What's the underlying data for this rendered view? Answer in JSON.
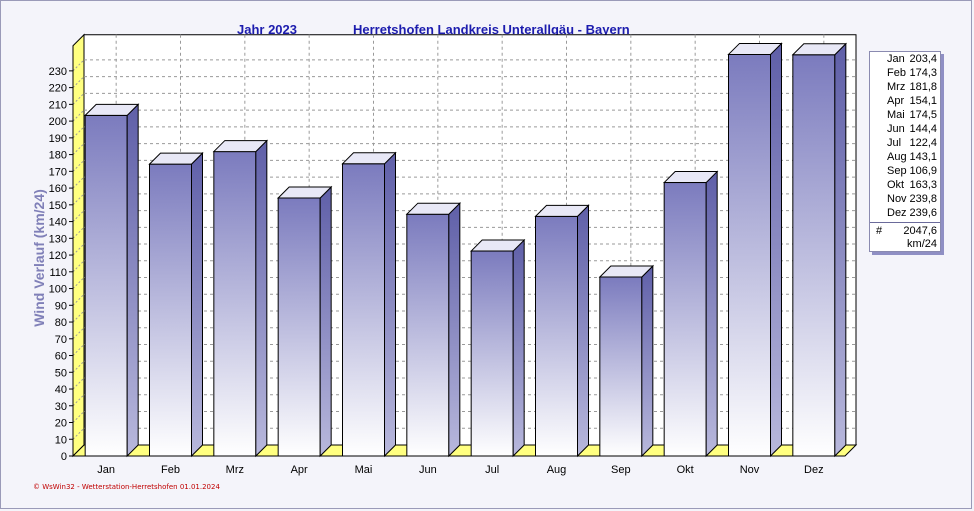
{
  "header": {
    "year_label": "Jahr  2023",
    "location": "Herretshofen Landkreis Unterallgäu - Bayern"
  },
  "chart_data": {
    "type": "bar",
    "style": "3d",
    "title": "Herretshofen Landkreis Unterallgäu - Bayern",
    "ylabel": "Wind Verlauf  (km/24)",
    "xlabel": "",
    "ylim": [
      0,
      245
    ],
    "yticks": [
      0,
      10,
      20,
      30,
      40,
      50,
      60,
      70,
      80,
      90,
      100,
      110,
      120,
      130,
      140,
      150,
      160,
      170,
      180,
      190,
      200,
      210,
      220,
      230
    ],
    "grid": true,
    "categories": [
      "Jan",
      "Feb",
      "Mrz",
      "Apr",
      "Mai",
      "Jun",
      "Jul",
      "Aug",
      "Sep",
      "Okt",
      "Nov",
      "Dez"
    ],
    "values": [
      203.4,
      174.3,
      181.8,
      154.1,
      174.5,
      144.4,
      122.4,
      143.1,
      106.9,
      163.3,
      239.8,
      239.6
    ],
    "colors": {
      "bar_top": "#7f7fc0",
      "bar_bottom": "#ffffff",
      "floor": "#ffff80",
      "axis_label": "#8080b8"
    }
  },
  "legend": {
    "rows": [
      {
        "month": "Jan",
        "value": "203,4"
      },
      {
        "month": "Feb",
        "value": "174,3"
      },
      {
        "month": "Mrz",
        "value": "181,8"
      },
      {
        "month": "Apr",
        "value": "154,1"
      },
      {
        "month": "Mai",
        "value": "174,5"
      },
      {
        "month": "Jun",
        "value": "144,4"
      },
      {
        "month": "Jul",
        "value": "122,4"
      },
      {
        "month": "Aug",
        "value": "143,1"
      },
      {
        "month": "Sep",
        "value": "106,9"
      },
      {
        "month": "Okt",
        "value": "163,3"
      },
      {
        "month": "Nov",
        "value": "239,8"
      },
      {
        "month": "Dez",
        "value": "239,6"
      }
    ],
    "total_symbol": "#",
    "total_value": "2047,6",
    "unit": "km/24"
  },
  "footer": "© WsWin32 - Wetterstation-Herretshofen  01.01.2024"
}
